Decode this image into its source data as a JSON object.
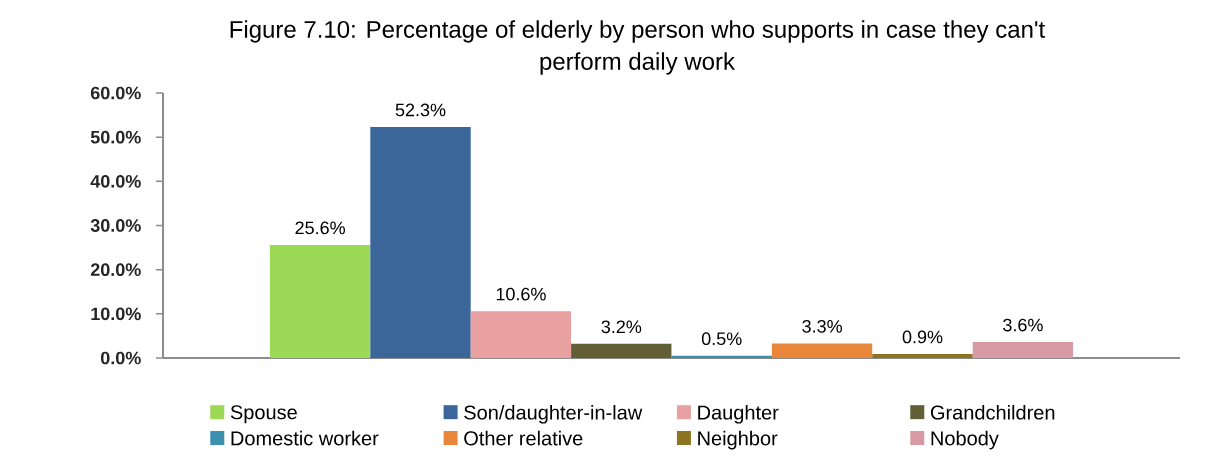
{
  "chart_data": {
    "type": "bar",
    "title": "Figure 7.10: Percentage of elderly by person who supports in case they can't perform daily work",
    "categories": [
      null
    ],
    "series": [
      {
        "name": "Spouse",
        "color": "#9bd957",
        "values": [
          25.6
        ],
        "value_labels": [
          "25.6%"
        ]
      },
      {
        "name": "Son/daughter-in-law",
        "color": "#3b6699",
        "values": [
          52.3
        ],
        "value_labels": [
          "52.3%"
        ]
      },
      {
        "name": "Daughter",
        "color": "#e8a0a0",
        "values": [
          10.6
        ],
        "value_labels": [
          "10.6%"
        ]
      },
      {
        "name": "Grandchildren",
        "color": "#625e36",
        "values": [
          3.2
        ],
        "value_labels": [
          "3.2%"
        ]
      },
      {
        "name": "Domestic worker",
        "color": "#3a90ad",
        "values": [
          0.5
        ],
        "value_labels": [
          "0.5%"
        ]
      },
      {
        "name": "Other relative",
        "color": "#e8873a",
        "values": [
          3.3
        ],
        "value_labels": [
          "3.3%"
        ]
      },
      {
        "name": "Neighbor",
        "color": "#8c7422",
        "values": [
          0.9
        ],
        "value_labels": [
          "0.9%"
        ]
      },
      {
        "name": "Nobody",
        "color": "#d89aa2",
        "values": [
          3.6
        ],
        "value_labels": [
          "3.6%"
        ]
      }
    ],
    "ylim": [
      0,
      60
    ],
    "yticks": [
      {
        "value": 0,
        "label": "0.0%"
      },
      {
        "value": 10,
        "label": "10.0%"
      },
      {
        "value": 20,
        "label": "20.0%"
      },
      {
        "value": 30,
        "label": "30.0%"
      },
      {
        "value": 40,
        "label": "40.0%"
      },
      {
        "value": 50,
        "label": "50.0%"
      },
      {
        "value": 60,
        "label": "60.0%"
      }
    ],
    "legend": "bottom",
    "tick_labels": "y"
  }
}
